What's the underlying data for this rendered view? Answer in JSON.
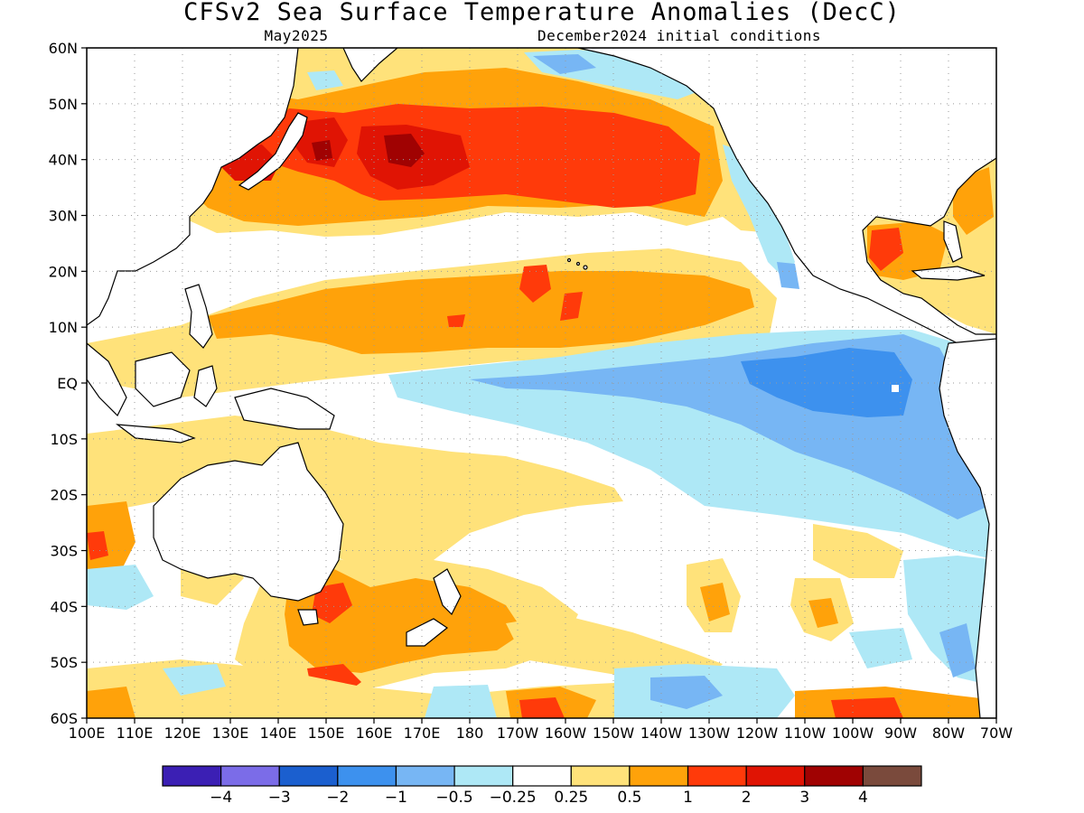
{
  "title": "CFSv2 Sea Surface Temperature Anomalies (DecC)",
  "subtitle_left": "May2025",
  "subtitle_right": "December2024 initial conditions",
  "lat_labels": [
    "60N",
    "50N",
    "40N",
    "30N",
    "20N",
    "10N",
    "EQ",
    "10S",
    "20S",
    "30S",
    "40S",
    "50S",
    "60S"
  ],
  "lon_labels": [
    "100E",
    "110E",
    "120E",
    "130E",
    "140E",
    "150E",
    "160E",
    "170E",
    "180",
    "170W",
    "160W",
    "150W",
    "140W",
    "130W",
    "120W",
    "110W",
    "100W",
    "90W",
    "80W",
    "70W"
  ],
  "map_extent": {
    "lon_min": 100,
    "lon_max": 290,
    "lat_min": -60,
    "lat_max": 60
  },
  "colorbar": {
    "colors": [
      "#3b1fb4",
      "#7b6ce8",
      "#1b5fcf",
      "#3d91ee",
      "#77b6f4",
      "#aee8f6",
      "#ffffff",
      "#ffe27a",
      "#ffa20a",
      "#ff3a0a",
      "#e01404",
      "#a00202",
      "#7a4a3c"
    ],
    "labels": [
      "−4",
      "−3",
      "−2",
      "−1",
      "−0.5",
      "−0.25",
      "0.25",
      "0.5",
      "1",
      "2",
      "3",
      "4"
    ]
  },
  "anomaly_regions": [
    {
      "level": "0.25 to 0.5",
      "color": "#ffe27a",
      "area": "North Pacific 30N-55N"
    },
    {
      "level": "0.5 to 1",
      "color": "#ffa20a",
      "area": "North Pacific 25N-50N"
    },
    {
      "level": "1 to 2",
      "color": "#ff3a0a",
      "area": "North Pacific 35N-48N, 150E-140W"
    },
    {
      "level": "2 to 3",
      "color": "#e01404",
      "area": "near Japan 40N"
    },
    {
      "level": "3 to 4",
      "color": "#a00202",
      "area": "east of Japan 42N"
    },
    {
      "level": "0.5 to 1",
      "color": "#ffa20a",
      "area": "tropical North Pacific 5N-20N"
    },
    {
      "level": "-0.25 to -0.5",
      "color": "#aee8f6",
      "area": "equatorial central/eastern Pacific"
    },
    {
      "level": "-0.5 to -1",
      "color": "#77b6f4",
      "area": "eastern equatorial Pacific"
    },
    {
      "level": "-1 to -2",
      "color": "#3d91ee",
      "area": "near Galapagos"
    },
    {
      "level": "0.5 to 1",
      "color": "#ffa20a",
      "area": "Gulf of Mexico"
    },
    {
      "level": "1 to 2",
      "color": "#ff3a0a",
      "area": "Tasman Sea / southern Australia"
    }
  ]
}
